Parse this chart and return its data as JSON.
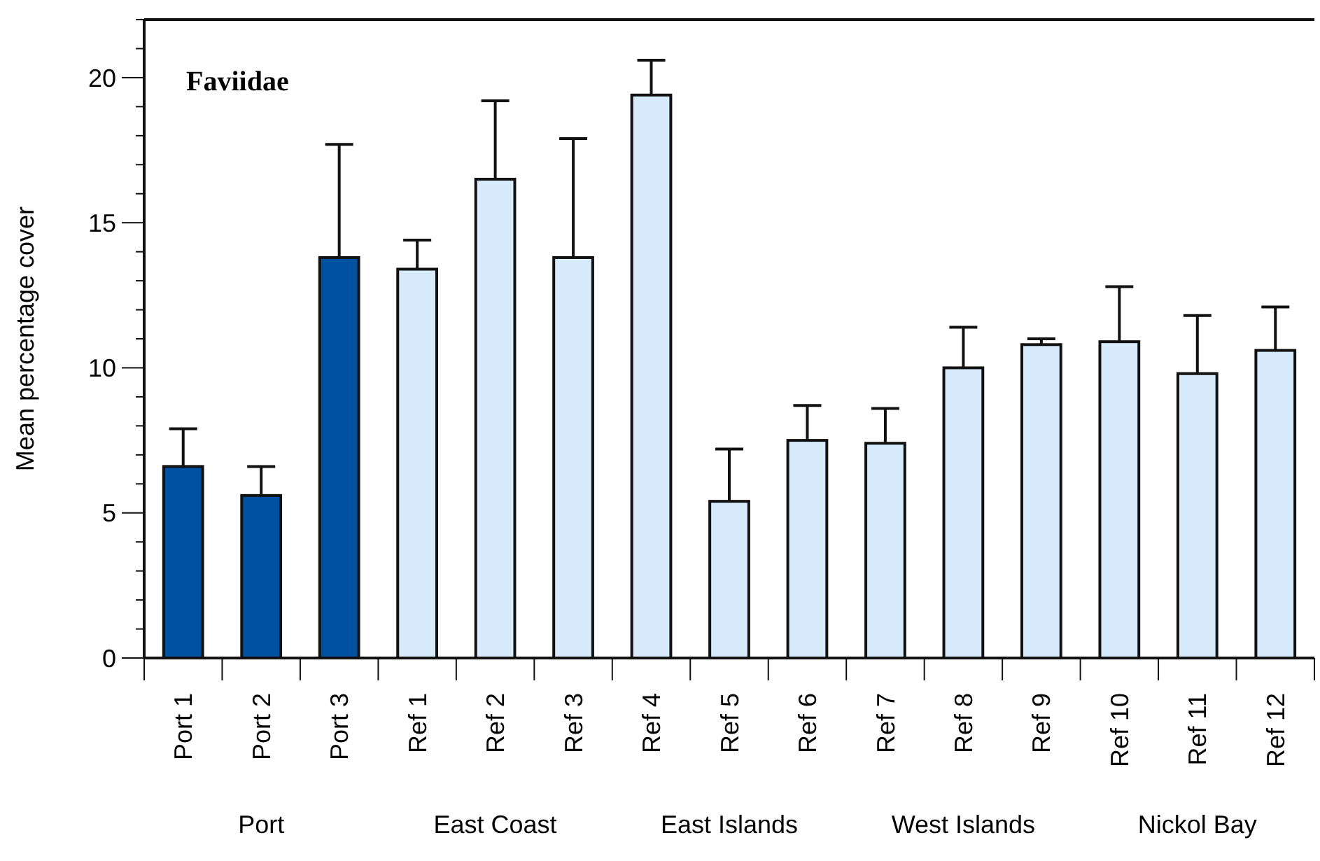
{
  "chart_data": {
    "type": "bar",
    "title": "Faviidae",
    "ylabel": "Mean percentage cover",
    "categories": [
      "Port 1",
      "Port 2",
      "Port 3",
      "Ref 1",
      "Ref 2",
      "Ref 3",
      "Ref 4",
      "Ref 5",
      "Ref 6",
      "Ref 7",
      "Ref 8",
      "Ref 9",
      "Ref 10",
      "Ref 11",
      "Ref 12"
    ],
    "values": [
      6.6,
      5.6,
      13.8,
      13.4,
      16.5,
      13.8,
      19.4,
      5.4,
      7.5,
      7.4,
      10.0,
      10.8,
      10.9,
      9.8,
      10.6
    ],
    "errors": [
      [
        6.6,
        7.9
      ],
      [
        5.6,
        6.6
      ],
      [
        13.8,
        17.7
      ],
      [
        13.4,
        14.4
      ],
      [
        16.5,
        19.2
      ],
      [
        13.8,
        17.9
      ],
      [
        19.4,
        20.6
      ],
      [
        5.4,
        7.2
      ],
      [
        7.5,
        8.7
      ],
      [
        7.4,
        8.6
      ],
      [
        10.0,
        11.4
      ],
      [
        10.8,
        11.0
      ],
      [
        10.9,
        12.8
      ],
      [
        9.8,
        11.8
      ],
      [
        10.6,
        12.1
      ]
    ],
    "colors": [
      "#0051a2",
      "#0051a2",
      "#0051a2",
      "#d7ebfd",
      "#d7ebfd",
      "#d7ebfd",
      "#d7ebfd",
      "#d7ebfd",
      "#d7ebfd",
      "#d7ebfd",
      "#d7ebfd",
      "#d7ebfd",
      "#d7ebfd",
      "#d7ebfd",
      "#d7ebfd"
    ],
    "ylim": [
      0,
      22
    ],
    "yticks": [
      0,
      {
        "value": 1,
        "label": null
      },
      {
        "value": 2,
        "label": null
      },
      {
        "value": 3,
        "label": null
      },
      {
        "value": 4,
        "label": null
      },
      5,
      {
        "value": 6,
        "label": null
      },
      {
        "value": 7,
        "label": null
      },
      {
        "value": 8,
        "label": null
      },
      {
        "value": 9,
        "label": null
      },
      10,
      {
        "value": 11,
        "label": null
      },
      {
        "value": 12,
        "label": null
      },
      {
        "value": 13,
        "label": null
      },
      {
        "value": 14,
        "label": null
      },
      15,
      {
        "value": 16,
        "label": null
      },
      {
        "value": 17,
        "label": null
      },
      {
        "value": 18,
        "label": null
      },
      {
        "value": 19,
        "label": null
      },
      20,
      {
        "value": 21,
        "label": null
      },
      {
        "value": 22,
        "label": null
      }
    ],
    "annotations": [
      "Port",
      "East Coast",
      "East Islands",
      "West Islands",
      "Nickol Bay"
    ]
  }
}
